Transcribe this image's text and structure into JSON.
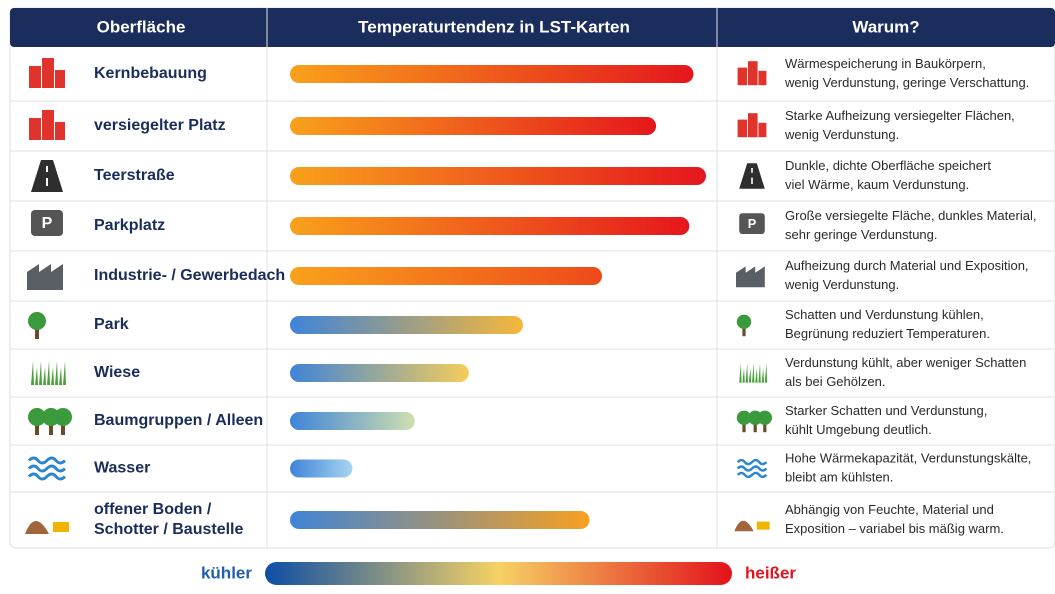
{
  "table": {
    "headers": [
      "Oberfläche",
      "Temperaturtendenz in LST-Karten",
      "Warum?"
    ],
    "xlim": [
      0,
      100
    ],
    "rows": [
      {
        "surface": [
          "Kernbebauung"
        ],
        "tendency": 97,
        "colors": [
          "#f9a11b",
          "#e5161c"
        ],
        "reason": [
          "Wärmespeicherung in Baukörpern,",
          "wenig Verdunstung, geringe Verschattung."
        ]
      },
      {
        "surface": [
          "versiegelter Platz"
        ],
        "tendency": 88,
        "colors": [
          "#f9a11b",
          "#e5161c"
        ],
        "reason": [
          "Starke Aufheizung versiegelter Flächen,",
          "wenig Verdunstung."
        ]
      },
      {
        "surface": [
          "Teerstraße"
        ],
        "tendency": 100,
        "colors": [
          "#f9a11b",
          "#e5161c"
        ],
        "reason": [
          "Dunkle, dichte Oberfläche speichert",
          "viel Wärme, kaum Verdunstung."
        ]
      },
      {
        "surface": [
          "Parkplatz"
        ],
        "tendency": 96,
        "colors": [
          "#f9a11b",
          "#e5161c"
        ],
        "reason": [
          "Große versiegelte Fläche, dunkles Material,",
          "sehr geringe Verdunstung."
        ]
      },
      {
        "surface": [
          "Industrie- / Gewerbedach"
        ],
        "tendency": 75,
        "colors": [
          "#f9a11b",
          "#ee4a1a"
        ],
        "reason": [
          "Aufheizung durch Material und Exposition,",
          "wenig Verdunstung."
        ]
      },
      {
        "surface": [
          "Park"
        ],
        "tendency": 56,
        "colors": [
          "#3f84d8",
          "#f6b73a"
        ],
        "reason": [
          "Schatten und Verdunstung kühlen,",
          "Begrünung reduziert Temperaturen."
        ]
      },
      {
        "surface": [
          "Wiese"
        ],
        "tendency": 43,
        "colors": [
          "#3f84d8",
          "#f4cd5a"
        ],
        "reason": [
          "Verdunstung kühlt, aber weniger Schatten",
          "als bei Gehölzen."
        ]
      },
      {
        "surface": [
          "Baumgruppen / Alleen"
        ],
        "tendency": 30,
        "colors": [
          "#3f84d8",
          "#cfe0b0"
        ],
        "reason": [
          "Starker Schatten und Verdunstung,",
          "kühlt Umgebung deutlich."
        ]
      },
      {
        "surface": [
          "Wasser"
        ],
        "tendency": 15,
        "colors": [
          "#3f84d8",
          "#a8d4f0"
        ],
        "reason": [
          "Hohe Wärmekapazität, Verdunstungskälte,",
          "bleibt am kühlsten."
        ]
      },
      {
        "surface": [
          "offener Boden /",
          "Schotter / Baustelle"
        ],
        "tendency": 72,
        "colors": [
          "#3f84d8",
          "#f7a021"
        ],
        "reason": [
          "Abhängig von Feuchte, Material und",
          "Exposition – variabel bis mäßig warm."
        ]
      }
    ]
  },
  "legend": {
    "low": "kühler",
    "high": "heißer",
    "colors": [
      "#0d4ea6",
      "#f6d264",
      "#e3121b"
    ]
  }
}
